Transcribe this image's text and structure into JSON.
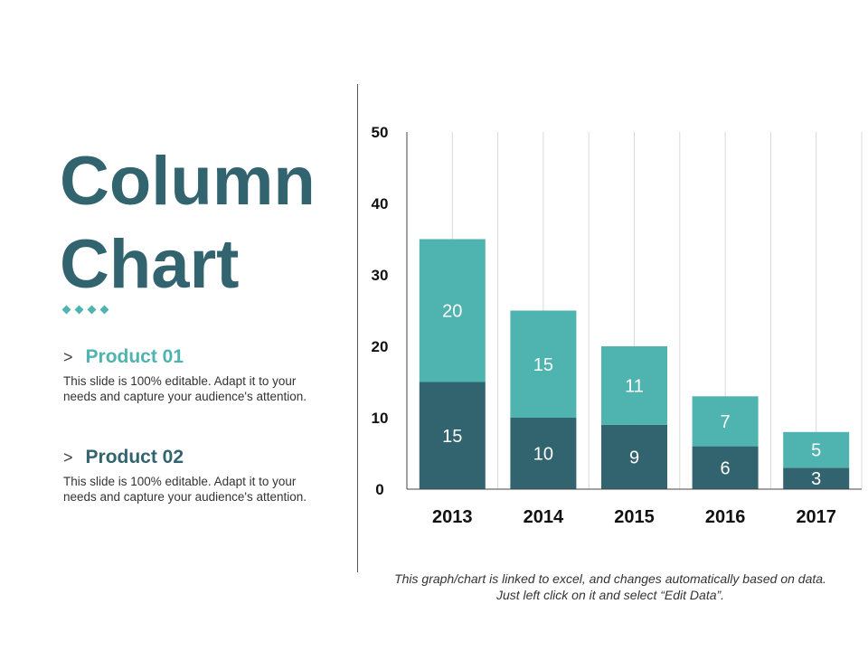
{
  "title_line1": "Column",
  "title_line2": "Chart",
  "products": [
    {
      "label": "Product 01",
      "description": "This slide is 100% editable. Adapt it to your needs and capture your audience's attention.",
      "color": "#4fb3b0"
    },
    {
      "label": "Product 02",
      "description": "This slide is 100% editable. Adapt it to your needs and capture your audience's attention.",
      "color": "#32646f"
    }
  ],
  "chevron": ">",
  "note": "This graph/chart is linked to excel, and changes automatically based on data. Just left click on it and select “Edit Data”.",
  "chart_data": {
    "type": "bar",
    "stacked": true,
    "categories": [
      "2013",
      "2014",
      "2015",
      "2016",
      "2017"
    ],
    "series": [
      {
        "values": [
          15,
          10,
          9,
          6,
          3
        ],
        "color": "#32646f"
      },
      {
        "values": [
          20,
          15,
          11,
          7,
          5
        ],
        "color": "#4fb3b0"
      }
    ],
    "ylim": [
      0,
      50
    ],
    "yticks": [
      0,
      10,
      20,
      30,
      40,
      50
    ],
    "grid": "vertical"
  }
}
